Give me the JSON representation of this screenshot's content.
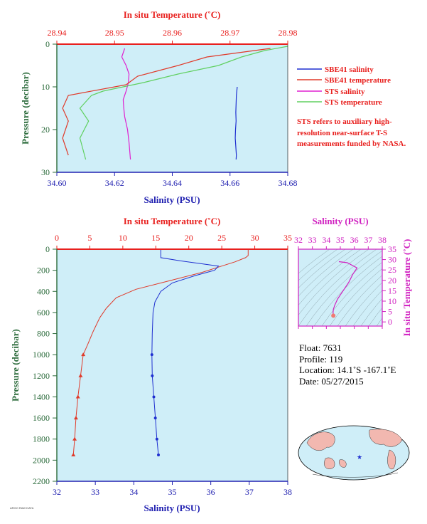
{
  "colors": {
    "plot_bg": "#cfeef8",
    "sbe_salinity": "#1f2fd0",
    "sbe_temperature": "#e03a2a",
    "sts_salinity": "#e020d0",
    "sts_temperature": "#60d060",
    "temp_axis": "#e8201e",
    "sal_axis": "#2020b0",
    "pressure_axis": "#2a6a3a",
    "inset_axis": "#d020c0"
  },
  "chart_data": [
    {
      "type": "line",
      "xlabel_top": "In situ Temperature (˚C)",
      "xlabel_bottom": "Salinity (PSU)",
      "ylabel": "Pressure (decibar)",
      "x_top_ticks": [
        "28.94",
        "28.95",
        "28.96",
        "28.97",
        "28.98"
      ],
      "x_top_lim": [
        28.94,
        28.98
      ],
      "x_bottom_ticks": [
        "34.60",
        "34.62",
        "34.64",
        "34.66",
        "34.68"
      ],
      "x_bottom_lim": [
        34.6,
        34.68
      ],
      "y_ticks": [
        "0",
        "10",
        "20",
        "30"
      ],
      "ylim": [
        0,
        30
      ],
      "legend": [
        "SBE41 salinity",
        "SBE41 temperature",
        "STS salinity",
        "STS temperature"
      ],
      "legend_position": "right",
      "note": "STS refers to auxiliary high-resolution near-surface T-S measurements funded by NASA.",
      "series": [
        {
          "name": "SBE41 salinity",
          "axis": "bottom",
          "x": [
            34.6625,
            34.6622,
            34.6621,
            34.662,
            34.6621,
            34.6619,
            34.6618,
            34.662,
            34.6622,
            34.6621
          ],
          "y": [
            10,
            12,
            14,
            16,
            18,
            20,
            22,
            24,
            26,
            27
          ]
        },
        {
          "name": "STS salinity",
          "axis": "bottom",
          "x": [
            34.6235,
            34.6225,
            34.624,
            34.625,
            34.6248,
            34.624,
            34.623,
            34.6232,
            34.6235,
            34.6245,
            34.625,
            34.6255
          ],
          "y": [
            1,
            3,
            5,
            7,
            9,
            11,
            13,
            15,
            17,
            20,
            23,
            27
          ]
        },
        {
          "name": "STS temperature",
          "axis": "top",
          "x": [
            28.98,
            28.976,
            28.972,
            28.968,
            28.961,
            28.955,
            28.948,
            28.946,
            28.944,
            28.9455,
            28.944,
            28.945
          ],
          "y": [
            0.5,
            1.5,
            3,
            5,
            7,
            9,
            11,
            12,
            15,
            18,
            22,
            27
          ]
        },
        {
          "name": "SBE41 temperature",
          "axis": "top",
          "x": [
            28.977,
            28.966,
            28.961,
            28.954,
            28.952,
            28.942,
            28.941,
            28.942,
            28.941,
            28.942
          ],
          "y": [
            1,
            3,
            5,
            7.5,
            9.5,
            12,
            15,
            18,
            22,
            26
          ]
        }
      ]
    },
    {
      "type": "line",
      "xlabel_top": "In situ Temperature (˚C)",
      "xlabel_bottom": "Salinity (PSU)",
      "ylabel": "Pressure (decibar)",
      "x_top_ticks": [
        "0",
        "5",
        "10",
        "15",
        "20",
        "25",
        "30",
        "35"
      ],
      "x_top_lim": [
        0,
        35
      ],
      "x_bottom_ticks": [
        "32",
        "33",
        "34",
        "35",
        "36",
        "37",
        "38"
      ],
      "x_bottom_lim": [
        32,
        38
      ],
      "y_ticks": [
        "0",
        "200",
        "400",
        "600",
        "800",
        "1000",
        "1200",
        "1400",
        "1600",
        "1800",
        "2000",
        "2200"
      ],
      "ylim": [
        0,
        2200
      ],
      "series": [
        {
          "name": "Temperature",
          "axis": "top",
          "x": [
            29.0,
            29.0,
            28.6,
            27.0,
            25.0,
            22.0,
            17.0,
            12.0,
            9.0,
            7.5,
            6.5,
            5.5,
            4.7,
            4.0,
            3.6,
            3.2,
            2.9,
            2.7,
            2.5
          ],
          "y": [
            0,
            60,
            80,
            120,
            160,
            220,
            300,
            380,
            460,
            560,
            650,
            780,
            900,
            1000,
            1200,
            1400,
            1600,
            1800,
            1950
          ]
        },
        {
          "name": "Salinity",
          "axis": "bottom",
          "x": [
            34.7,
            34.7,
            35.2,
            35.8,
            36.2,
            36.1,
            35.6,
            35.0,
            34.7,
            34.55,
            34.5,
            34.48,
            34.47,
            34.48,
            34.52,
            34.56,
            34.6,
            34.64
          ],
          "y": [
            0,
            80,
            110,
            140,
            160,
            200,
            250,
            320,
            400,
            500,
            600,
            800,
            1000,
            1200,
            1400,
            1600,
            1800,
            1950
          ]
        }
      ]
    },
    {
      "type": "line",
      "xlabel_top": "Salinity (PSU)",
      "ylabel_right": "In situ Temperature (˚C)",
      "x_ticks": [
        "32",
        "33",
        "34",
        "35",
        "36",
        "37",
        "38"
      ],
      "xlim": [
        32,
        38
      ],
      "y_ticks": [
        "0",
        "5",
        "10",
        "15",
        "20",
        "25",
        "30",
        "35"
      ],
      "ylim": [
        -2,
        35
      ],
      "series": [
        {
          "name": "T-S",
          "x": [
            34.5,
            34.48,
            34.5,
            34.6,
            34.8,
            35.2,
            35.6,
            35.9,
            36.2,
            35.5,
            34.9
          ],
          "y": [
            3,
            4.5,
            6,
            8,
            11,
            15,
            19,
            23,
            26,
            28.5,
            29
          ]
        }
      ]
    }
  ],
  "float_info": {
    "float": "Float:  7631",
    "profile": "Profile:  119",
    "location": "Location:  14.1˚S  -167.1˚E",
    "date": "Date:  05/27/2015"
  },
  "stamp": "ARGO RAW DATA"
}
